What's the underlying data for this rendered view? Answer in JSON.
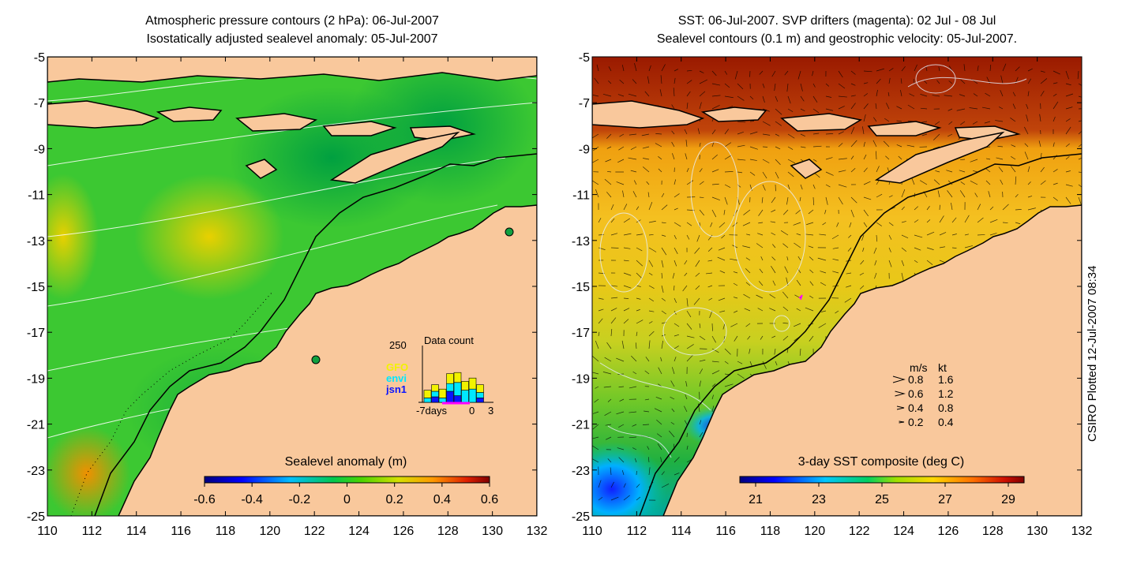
{
  "credit": "CSIRO Plotted 12-Jul-2007 08:34",
  "chart_data": [
    {
      "type": "heatmap",
      "panel": "left",
      "title_line1": "Atmospheric pressure contours (2 hPa): 06-Jul-2007",
      "title_line2": "Isostatically adjusted sealevel anomaly: 05-Jul-2007",
      "xlim": [
        110,
        132
      ],
      "ylim": [
        -25,
        -5
      ],
      "x_ticks": [
        "110",
        "112",
        "114",
        "116",
        "118",
        "120",
        "122",
        "124",
        "126",
        "128",
        "130",
        "132"
      ],
      "y_ticks": [
        "-5",
        "-7",
        "-9",
        "-11",
        "-13",
        "-15",
        "-17",
        "-19",
        "-21",
        "-23",
        "-25"
      ],
      "colorbar": {
        "label": "Sealevel anomaly (m)",
        "range": [
          -0.6,
          0.6
        ],
        "ticks": [
          "-0.6",
          "-0.4",
          "-0.2",
          "0",
          "0.2",
          "0.4",
          "0.6"
        ]
      },
      "inset": {
        "title": "Data count",
        "y_max_label": "250",
        "x_labels": [
          "-7days",
          "0",
          "3"
        ],
        "legend": [
          {
            "name": "GFO",
            "color": "#f2f200"
          },
          {
            "name": "envi",
            "color": "#00e8ff"
          },
          {
            "name": "jsn1",
            "color": "#0a14ff"
          }
        ],
        "stacks": [
          [
            35,
            20,
            0
          ],
          [
            30,
            25,
            25
          ],
          [
            40,
            20,
            0
          ],
          [
            45,
            35,
            50
          ],
          [
            45,
            60,
            30
          ],
          [
            40,
            55,
            0
          ],
          [
            50,
            60,
            0
          ],
          [
            35,
            25,
            20
          ]
        ],
        "y_max": 250
      }
    },
    {
      "type": "heatmap",
      "panel": "right",
      "title_line1": "SST: 06-Jul-2007. SVP drifters (magenta): 02 Jul - 08 Jul",
      "title_line2": "Sealevel contours (0.1 m) and geostrophic velocity: 05-Jul-2007.",
      "xlim": [
        110,
        132
      ],
      "ylim": [
        -25,
        -5
      ],
      "x_ticks": [
        "110",
        "112",
        "114",
        "116",
        "118",
        "120",
        "122",
        "124",
        "126",
        "128",
        "130",
        "132"
      ],
      "y_ticks": [
        "-5",
        "-7",
        "-9",
        "-11",
        "-13",
        "-15",
        "-17",
        "-19",
        "-21",
        "-23",
        "-25"
      ],
      "colorbar": {
        "label": "3-day SST composite (deg C)",
        "range": [
          20.5,
          29.5
        ],
        "ticks": [
          "21",
          "23",
          "25",
          "27",
          "29"
        ]
      },
      "velocity_legend": {
        "header_ms": "m/s",
        "header_kt": "kt",
        "rows": [
          {
            "ms": "0.8",
            "kt": "1.6"
          },
          {
            "ms": "0.6",
            "kt": "1.2"
          },
          {
            "ms": "0.4",
            "kt": "0.8"
          },
          {
            "ms": "0.2",
            "kt": "0.4"
          }
        ]
      }
    }
  ]
}
